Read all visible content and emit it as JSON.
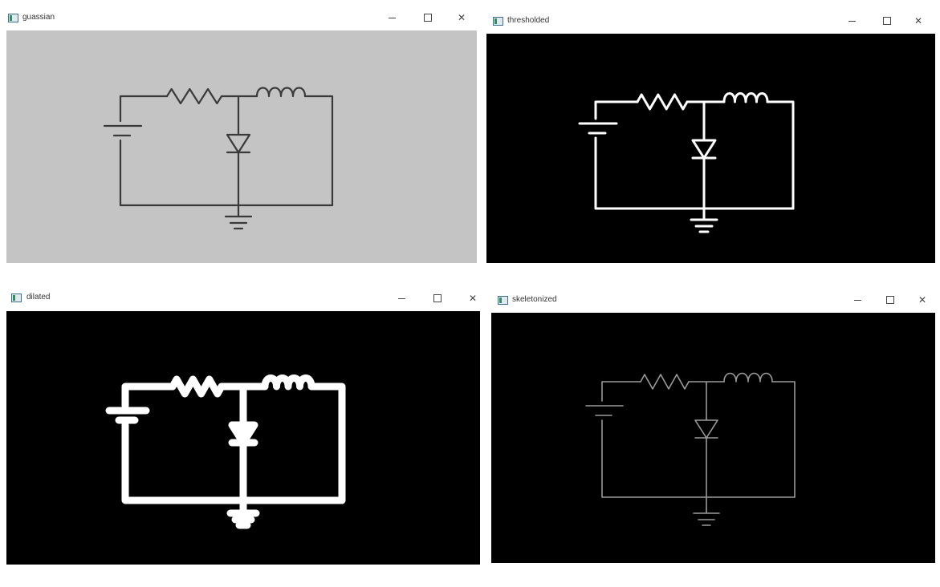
{
  "windows": [
    {
      "id": "gaussian",
      "title": "guassian",
      "background": "#c4c4c4",
      "stroke": "#3a3a3a",
      "style": "thin"
    },
    {
      "id": "thresholded",
      "title": "thresholded",
      "background": "#000000",
      "stroke": "#ffffff",
      "style": "thin"
    },
    {
      "id": "dilated",
      "title": "dilated",
      "background": "#000000",
      "stroke": "#ffffff",
      "style": "thick"
    },
    {
      "id": "skeletonized",
      "title": "skeletonized",
      "background": "#000000",
      "stroke": "#9a9a9a",
      "style": "hair"
    }
  ],
  "controls": {
    "minimize": "minimize-icon",
    "maximize": "maximize-icon",
    "close": "close-icon"
  }
}
